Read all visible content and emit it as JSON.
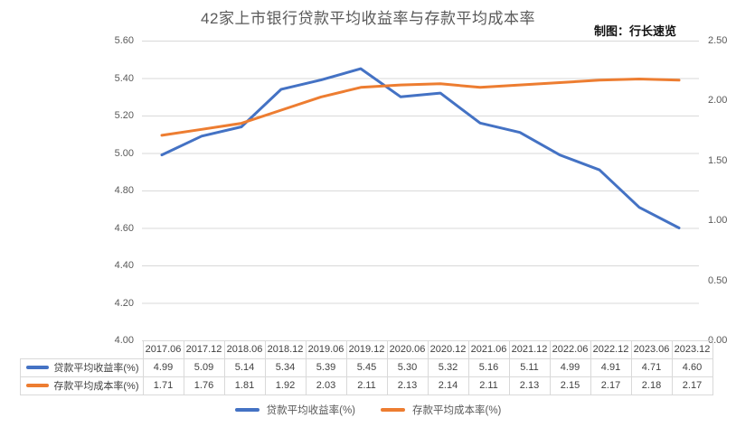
{
  "title": "42家上市银行贷款平均收益率与存款平均成本率",
  "credit": "制图：行长速览",
  "colors": {
    "loan_line": "#4472C4",
    "deposit_line": "#ED7D31",
    "gridline": "#D9D9D9",
    "table_border": "#D9D9D9",
    "axis_text": "#595959",
    "table_text": "#404040",
    "title_text": "#595959",
    "credit_text": "#111111"
  },
  "chart_data": {
    "type": "line",
    "title": "42家上市银行贷款平均收益率与存款平均成本率",
    "categories": [
      "2017.06",
      "2017.12",
      "2018.06",
      "2018.12",
      "2019.06",
      "2019.12",
      "2020.06",
      "2020.12",
      "2021.06",
      "2021.12",
      "2022.06",
      "2022.12",
      "2023.06",
      "2023.12"
    ],
    "series": [
      {
        "name": "贷款平均收益率(%)",
        "axis": "left",
        "color": "#4472C4",
        "values": [
          4.99,
          5.09,
          5.14,
          5.34,
          5.39,
          5.45,
          5.3,
          5.32,
          5.16,
          5.11,
          4.99,
          4.91,
          4.71,
          4.6
        ]
      },
      {
        "name": "存款平均成本率(%)",
        "axis": "right",
        "color": "#ED7D31",
        "values": [
          1.71,
          1.76,
          1.81,
          1.92,
          2.03,
          2.11,
          2.13,
          2.14,
          2.11,
          2.13,
          2.15,
          2.17,
          2.18,
          2.17
        ]
      }
    ],
    "left_axis": {
      "min": 4.0,
      "max": 5.6,
      "step": 0.2,
      "ticks": [
        "5.60",
        "5.40",
        "5.20",
        "5.00",
        "4.80",
        "4.60",
        "4.40",
        "4.20",
        "4.00"
      ]
    },
    "right_axis": {
      "min": 0.0,
      "max": 2.5,
      "step": 0.5,
      "ticks": [
        "2.50",
        "2.00",
        "1.50",
        "1.00",
        "0.50",
        "0.00"
      ]
    },
    "grid": true,
    "legend_position": "bottom",
    "show_data_table": true
  }
}
